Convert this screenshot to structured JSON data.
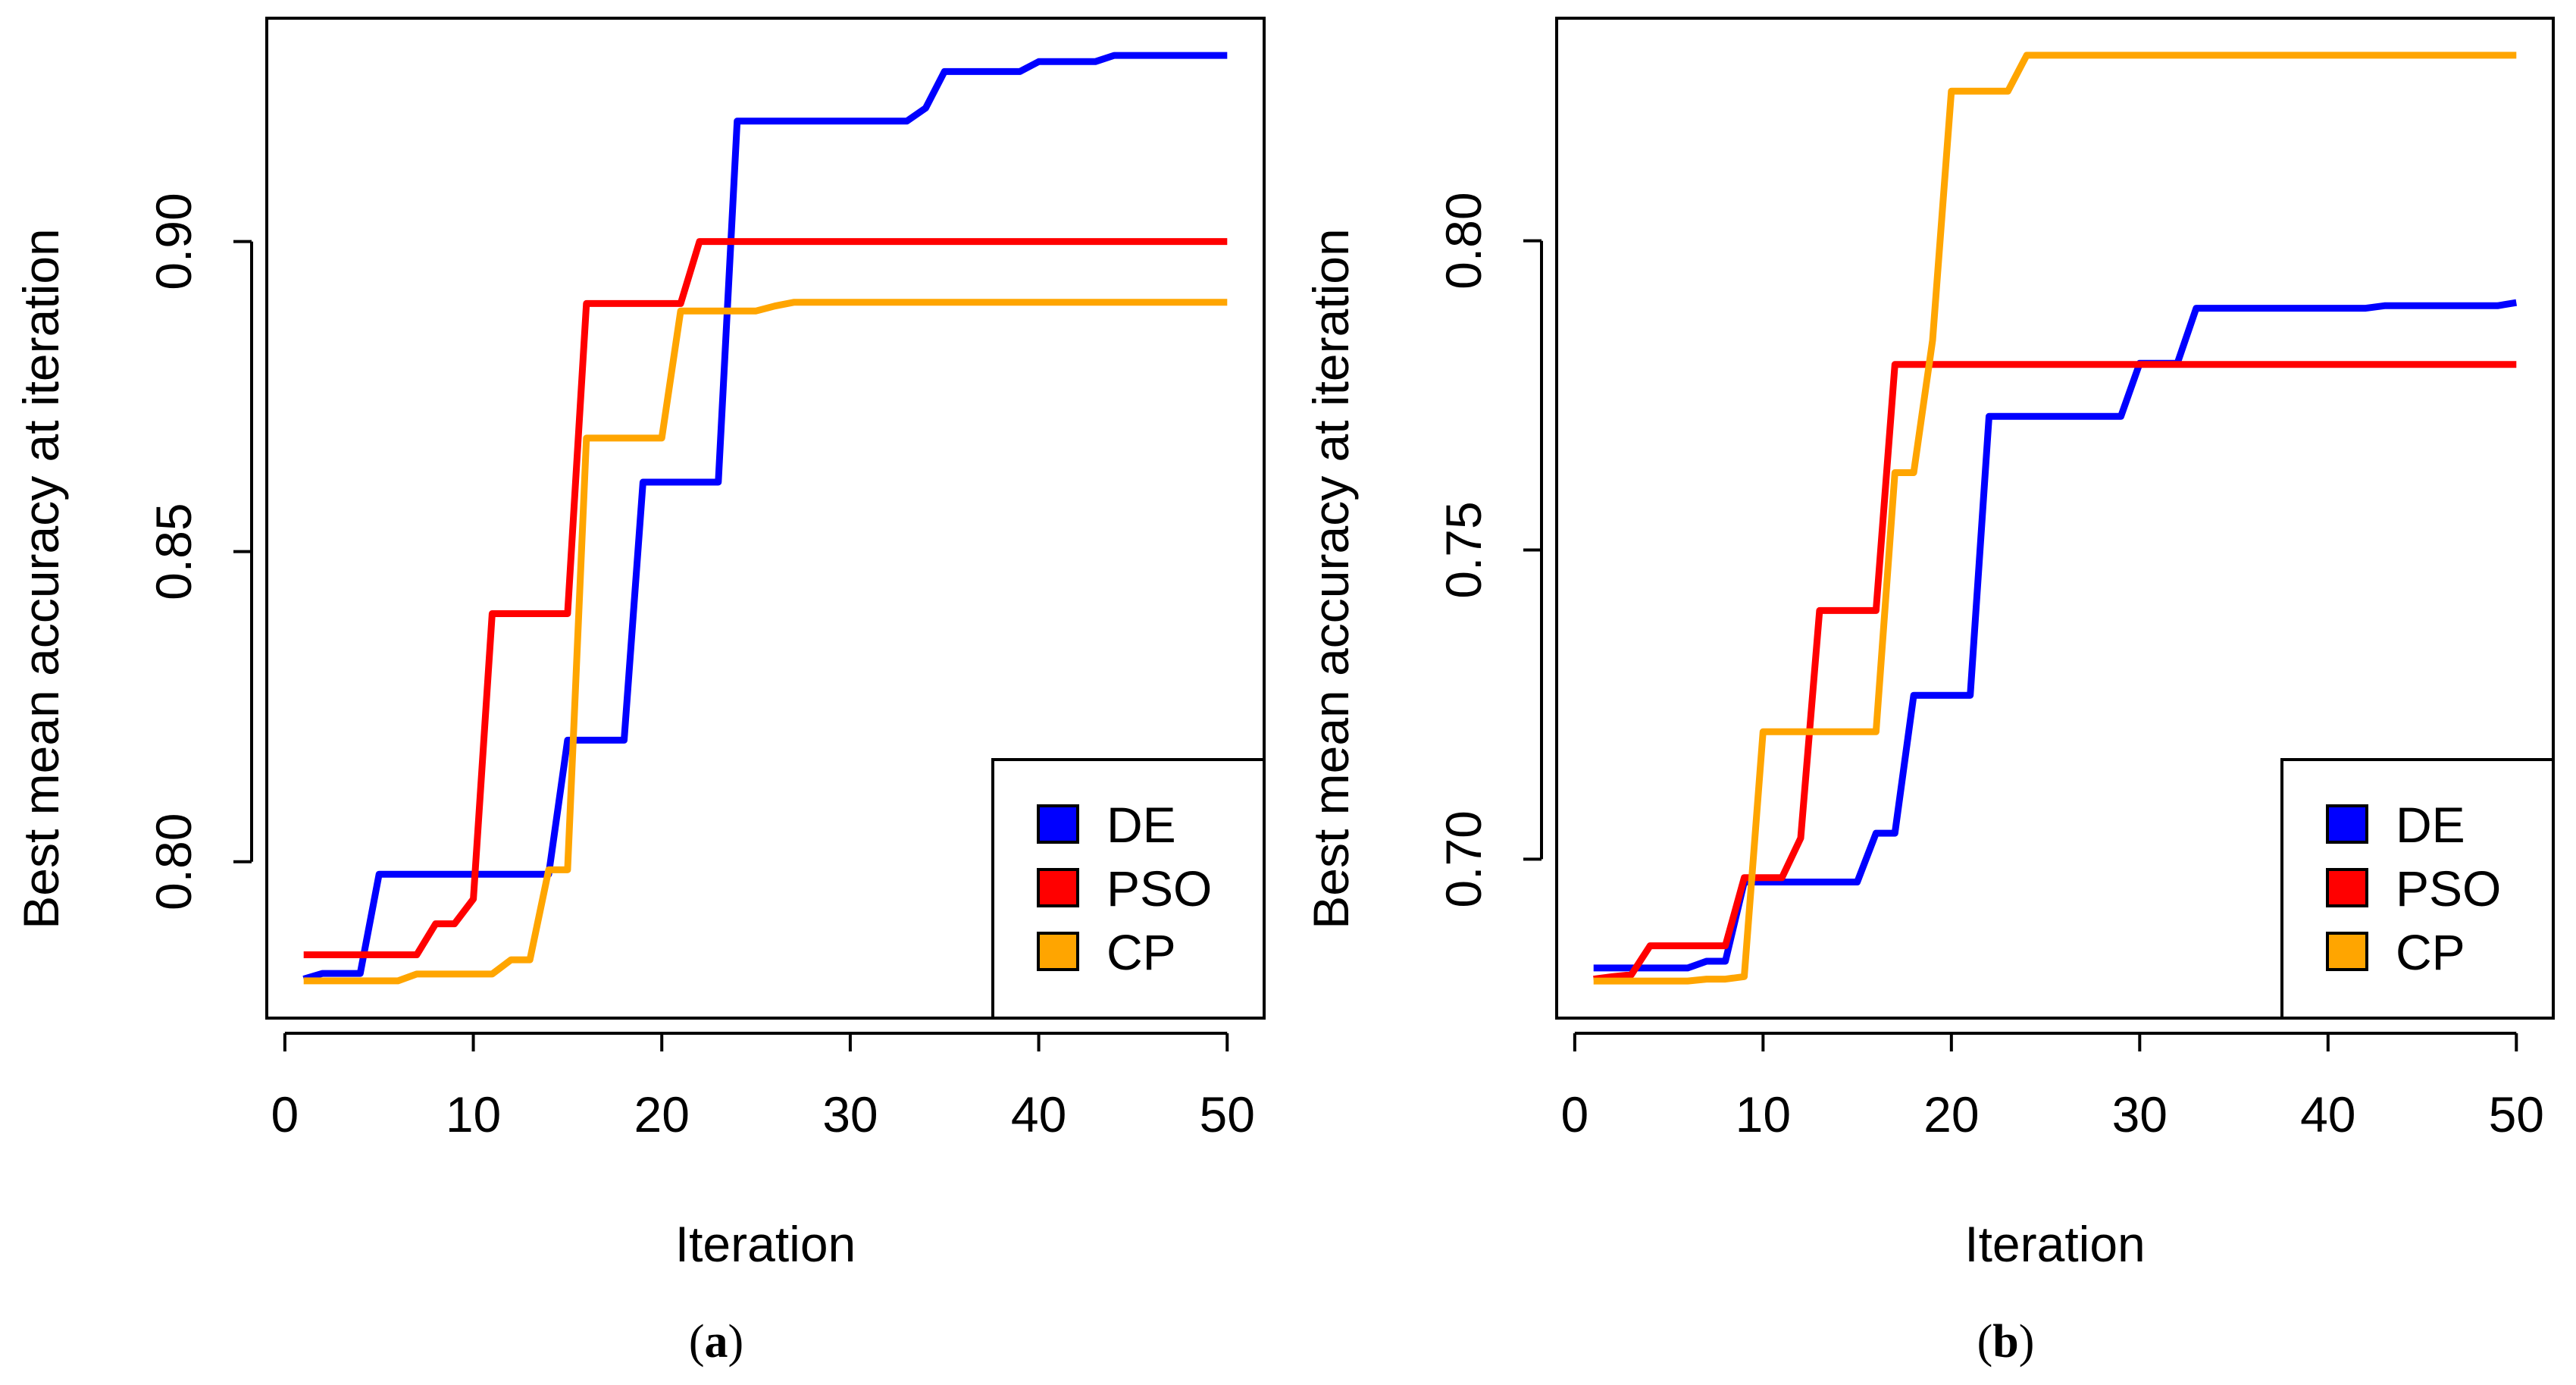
{
  "chart_data": [
    {
      "type": "line",
      "panel_label": "a",
      "xlabel": "Iteration",
      "ylabel": "Best mean accuracy at iteration",
      "xlim": [
        -0.96,
        51.96
      ],
      "ylim": [
        0.7748,
        0.936
      ],
      "xticks": [
        0,
        10,
        20,
        30,
        40,
        50
      ],
      "yticks": [
        "0.80",
        "0.85",
        "0.90"
      ],
      "legend_position": "bottom-right",
      "x": [
        1,
        2,
        3,
        4,
        5,
        6,
        7,
        8,
        9,
        10,
        11,
        12,
        13,
        14,
        15,
        16,
        17,
        18,
        19,
        20,
        21,
        22,
        23,
        24,
        25,
        26,
        27,
        28,
        29,
        30,
        31,
        32,
        33,
        34,
        35,
        36,
        37,
        38,
        39,
        40,
        41,
        42,
        43,
        44,
        45,
        46,
        47,
        48,
        49,
        50
      ],
      "series": [
        {
          "name": "DE",
          "color": "#0000ff",
          "values": [
            0.7811,
            0.782,
            0.782,
            0.782,
            0.798,
            0.798,
            0.798,
            0.798,
            0.798,
            0.798,
            0.798,
            0.798,
            0.798,
            0.798,
            0.8196,
            0.8196,
            0.8196,
            0.8196,
            0.8612,
            0.8612,
            0.8612,
            0.8612,
            0.8612,
            0.9194,
            0.9194,
            0.9194,
            0.9194,
            0.9194,
            0.9194,
            0.9194,
            0.9194,
            0.9194,
            0.9194,
            0.9215,
            0.9274,
            0.9274,
            0.9274,
            0.9274,
            0.9274,
            0.929,
            0.929,
            0.929,
            0.929,
            0.93,
            0.93,
            0.93,
            0.93,
            0.93,
            0.93,
            0.93
          ]
        },
        {
          "name": "PSO",
          "color": "#ff0000",
          "values": [
            0.785,
            0.785,
            0.785,
            0.785,
            0.785,
            0.785,
            0.785,
            0.79,
            0.79,
            0.794,
            0.84,
            0.84,
            0.84,
            0.84,
            0.84,
            0.89,
            0.89,
            0.89,
            0.89,
            0.89,
            0.89,
            0.9,
            0.9,
            0.9,
            0.9,
            0.9,
            0.9,
            0.9,
            0.9,
            0.9,
            0.9,
            0.9,
            0.9,
            0.9,
            0.9,
            0.9,
            0.9,
            0.9,
            0.9,
            0.9,
            0.9,
            0.9,
            0.9,
            0.9,
            0.9,
            0.9,
            0.9,
            0.9,
            0.9,
            0.9
          ]
        },
        {
          "name": "CP",
          "color": "#ffa500",
          "values": [
            0.7808,
            0.7808,
            0.7808,
            0.7808,
            0.7808,
            0.7808,
            0.7819,
            0.7819,
            0.7819,
            0.7819,
            0.7819,
            0.7842,
            0.7842,
            0.7987,
            0.7987,
            0.8683,
            0.8683,
            0.8683,
            0.8683,
            0.8683,
            0.8888,
            0.8888,
            0.8888,
            0.8888,
            0.8888,
            0.8896,
            0.8902,
            0.8902,
            0.8902,
            0.8902,
            0.8902,
            0.8902,
            0.8902,
            0.8902,
            0.8902,
            0.8902,
            0.8902,
            0.8902,
            0.8902,
            0.8902,
            0.8902,
            0.8902,
            0.8902,
            0.8902,
            0.8902,
            0.8902,
            0.8902,
            0.8902,
            0.8902,
            0.8902
          ]
        }
      ]
    },
    {
      "type": "line",
      "panel_label": "b",
      "xlabel": "Iteration",
      "ylabel": "Best mean accuracy at iteration",
      "xlim": [
        -0.96,
        51.96
      ],
      "ylim": [
        0.6743,
        0.836
      ],
      "xticks": [
        0,
        10,
        20,
        30,
        40,
        50
      ],
      "yticks": [
        "0.70",
        "0.75",
        "0.80"
      ],
      "legend_position": "bottom-right",
      "x": [
        1,
        2,
        3,
        4,
        5,
        6,
        7,
        8,
        9,
        10,
        11,
        12,
        13,
        14,
        15,
        16,
        17,
        18,
        19,
        20,
        21,
        22,
        23,
        24,
        25,
        26,
        27,
        28,
        29,
        30,
        31,
        32,
        33,
        34,
        35,
        36,
        37,
        38,
        39,
        40,
        41,
        42,
        43,
        44,
        45,
        46,
        47,
        48,
        49,
        50
      ],
      "series": [
        {
          "name": "DE",
          "color": "#0000ff",
          "values": [
            0.6824,
            0.6824,
            0.6824,
            0.6824,
            0.6824,
            0.6824,
            0.6835,
            0.6835,
            0.6963,
            0.6963,
            0.6963,
            0.6963,
            0.6963,
            0.6963,
            0.6963,
            0.7042,
            0.7042,
            0.7265,
            0.7265,
            0.7265,
            0.7265,
            0.7716,
            0.7716,
            0.7716,
            0.7716,
            0.7716,
            0.7716,
            0.7716,
            0.7716,
            0.7802,
            0.7802,
            0.7802,
            0.7891,
            0.7891,
            0.7891,
            0.7891,
            0.7891,
            0.7891,
            0.7891,
            0.7891,
            0.7891,
            0.7891,
            0.7895,
            0.7895,
            0.7895,
            0.7895,
            0.7895,
            0.7895,
            0.7895,
            0.79
          ]
        },
        {
          "name": "PSO",
          "color": "#ff0000",
          "values": [
            0.6806,
            0.681,
            0.6813,
            0.686,
            0.686,
            0.686,
            0.686,
            0.686,
            0.697,
            0.697,
            0.697,
            0.7034,
            0.7402,
            0.7402,
            0.7402,
            0.7402,
            0.78,
            0.78,
            0.78,
            0.78,
            0.78,
            0.78,
            0.78,
            0.78,
            0.78,
            0.78,
            0.78,
            0.78,
            0.78,
            0.78,
            0.78,
            0.78,
            0.78,
            0.78,
            0.78,
            0.78,
            0.78,
            0.78,
            0.78,
            0.78,
            0.78,
            0.78,
            0.78,
            0.78,
            0.78,
            0.78,
            0.78,
            0.78,
            0.78,
            0.78
          ]
        },
        {
          "name": "CP",
          "color": "#ffa500",
          "values": [
            0.6803,
            0.6803,
            0.6803,
            0.6803,
            0.6803,
            0.6803,
            0.6806,
            0.6806,
            0.681,
            0.7206,
            0.7206,
            0.7206,
            0.7206,
            0.7206,
            0.7206,
            0.7206,
            0.7625,
            0.7625,
            0.7839,
            0.8242,
            0.8242,
            0.8242,
            0.8242,
            0.83,
            0.83,
            0.83,
            0.83,
            0.83,
            0.83,
            0.83,
            0.83,
            0.83,
            0.83,
            0.83,
            0.83,
            0.83,
            0.83,
            0.83,
            0.83,
            0.83,
            0.83,
            0.83,
            0.83,
            0.83,
            0.83,
            0.83,
            0.83,
            0.83,
            0.83,
            0.83
          ]
        }
      ]
    }
  ]
}
